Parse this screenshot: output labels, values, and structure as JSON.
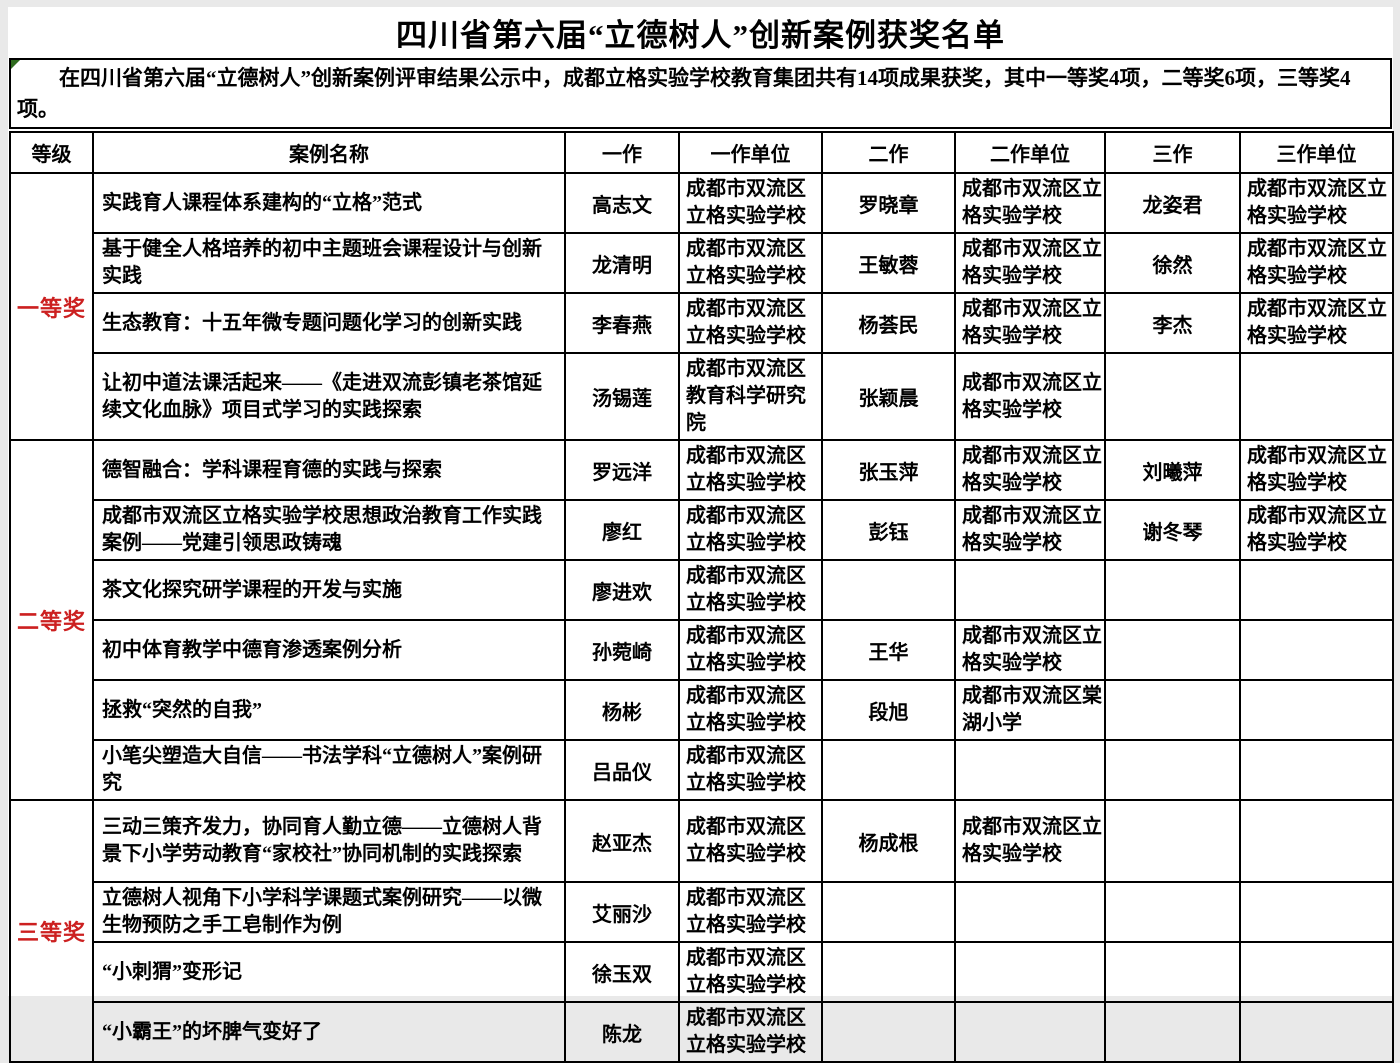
{
  "page": {
    "title": "四川省第六届“立德树人”创新案例获奖名单",
    "intro": "在四川省第六届“立德树人”创新案例评审结果公示中，成都立格实验学校教育集团共有14项成果获奖，其中一等奖4项，二等奖6项，三等奖4项。"
  },
  "colors": {
    "level_red": "#cc2020",
    "flag_green": "#2f6b1f",
    "border_black": "#000000"
  },
  "icons": {
    "corner_flag": "green-triangle-cell-marker"
  },
  "table": {
    "headers": [
      "等级",
      "案例名称",
      "一作",
      "一作单位",
      "二作",
      "二作单位",
      "三作",
      "三作单位"
    ],
    "groups": [
      {
        "level": "一等奖",
        "rows": [
          {
            "case": "实践育人课程体系建构的“立格”范式",
            "a1": "高志文",
            "u1": "成都市双流区立格实验学校",
            "a2": "罗晓章",
            "u2": "成都市双流区立格实验学校",
            "a3": "龙姿君",
            "u3": "成都市双流区立格实验学校"
          },
          {
            "case": "基于健全人格培养的初中主题班会课程设计与创新实践",
            "a1": "龙清明",
            "u1": "成都市双流区立格实验学校",
            "a2": "王敏蓉",
            "u2": "成都市双流区立格实验学校",
            "a3": "徐然",
            "u3": "成都市双流区立格实验学校"
          },
          {
            "case": "生态教育：十五年微专题问题化学习的创新实践",
            "a1": "李春燕",
            "u1": "成都市双流区立格实验学校",
            "a2": "杨荟民",
            "u2": "成都市双流区立格实验学校",
            "a3": "李杰",
            "u3": "成都市双流区立格实验学校"
          },
          {
            "case": "让初中道法课活起来——《走进双流彭镇老茶馆延续文化血脉》项目式学习的实践探索",
            "a1": "汤锡莲",
            "u1": "成都市双流区教育科学研究院",
            "a2": "张颖晨",
            "u2": "成都市双流区立格实验学校",
            "a3": "",
            "u3": ""
          }
        ]
      },
      {
        "level": "二等奖",
        "rows": [
          {
            "case": "德智融合：学科课程育德的实践与探索",
            "a1": "罗远洋",
            "u1": "成都市双流区立格实验学校",
            "a2": "张玉萍",
            "u2": "成都市双流区立格实验学校",
            "a3": "刘曦萍",
            "u3": "成都市双流区立格实验学校"
          },
          {
            "case": "成都市双流区立格实验学校思想政治教育工作实践案例——党建引领思政铸魂",
            "a1": "廖红",
            "u1": "成都市双流区立格实验学校",
            "a2": "彭钰",
            "u2": "成都市双流区立格实验学校",
            "a3": "谢冬琴",
            "u3": "成都市双流区立格实验学校"
          },
          {
            "case": "茶文化探究研学课程的开发与实施",
            "a1": "廖进欢",
            "u1": "成都市双流区立格实验学校",
            "a2": "",
            "u2": "",
            "a3": "",
            "u3": ""
          },
          {
            "case": "初中体育教学中德育渗透案例分析",
            "a1": "孙菀崎",
            "u1": "成都市双流区立格实验学校",
            "a2": "王华",
            "u2": "成都市双流区立格实验学校",
            "a3": "",
            "u3": ""
          },
          {
            "case": "拯救“突然的自我”",
            "a1": "杨彬",
            "u1": "成都市双流区立格实验学校",
            "a2": "段旭",
            "u2": "成都市双流区棠湖小学",
            "a3": "",
            "u3": ""
          },
          {
            "case": "小笔尖塑造大自信——书法学科“立德树人”案例研究",
            "a1": "吕品仪",
            "u1": "成都市双流区立格实验学校",
            "a2": "",
            "u2": "",
            "a3": "",
            "u3": ""
          }
        ]
      },
      {
        "level": "三等奖",
        "rows": [
          {
            "case": "三动三策齐发力，协同育人勤立德——立德树人背景下小学劳动教育“家校社”协同机制的实践探索",
            "a1": "赵亚杰",
            "u1": "成都市双流区立格实验学校",
            "a2": "杨成根",
            "u2": "成都市双流区立格实验学校",
            "a3": "",
            "u3": ""
          },
          {
            "case": "立德树人视角下小学科学课题式案例研究——以微生物预防之手工皂制作为例",
            "a1": "艾丽沙",
            "u1": "成都市双流区立格实验学校",
            "a2": "",
            "u2": "",
            "a3": "",
            "u3": ""
          },
          {
            "case": "“小刺猬”变形记",
            "a1": "徐玉双",
            "u1": "成都市双流区立格实验学校",
            "a2": "",
            "u2": "",
            "a3": "",
            "u3": ""
          },
          {
            "case": "“小霸王”的坏脾气变好了",
            "a1": "陈龙",
            "u1": "成都市双流区立格实验学校",
            "a2": "",
            "u2": "",
            "a3": "",
            "u3": ""
          }
        ]
      }
    ]
  }
}
